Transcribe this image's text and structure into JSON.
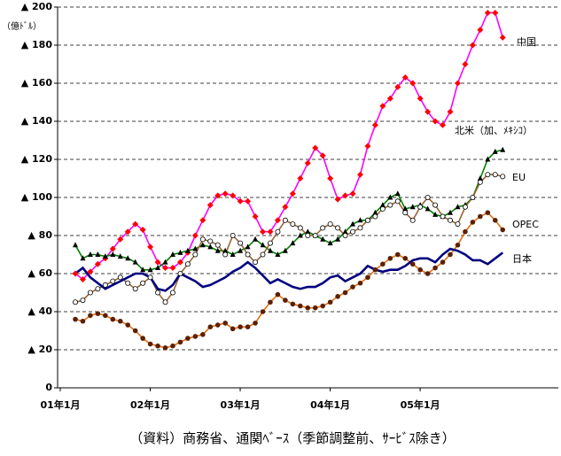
{
  "chart_data": {
    "type": "line",
    "unit_label": "（億ﾄﾞﾙ）",
    "source": "（資料）商務省、通関ﾍﾞｰｽ（季節調整前、ｻｰﾋﾞｽ除き）",
    "categories": [
      "01年1月",
      null,
      null,
      null,
      null,
      null,
      null,
      null,
      null,
      null,
      null,
      null,
      "02年1月",
      null,
      null,
      null,
      null,
      null,
      null,
      null,
      null,
      null,
      null,
      null,
      "03年1月",
      null,
      null,
      null,
      null,
      null,
      null,
      null,
      null,
      null,
      null,
      null,
      "04年1月",
      null,
      null,
      null,
      null,
      null,
      null,
      null,
      null,
      null,
      null,
      null,
      "05年1月",
      null,
      null,
      null,
      null,
      null,
      null,
      null,
      null,
      null
    ],
    "ylim": [
      0,
      200
    ],
    "yticks": [
      0,
      {
        "value": 20,
        "label": "▲ 20"
      },
      {
        "value": 40,
        "label": "▲ 40"
      },
      {
        "value": 60,
        "label": "▲ 60"
      },
      {
        "value": 80,
        "label": "▲ 80"
      },
      {
        "value": 100,
        "label": "▲ 100"
      },
      {
        "value": 120,
        "label": "▲ 120"
      },
      {
        "value": 140,
        "label": "▲ 140"
      },
      {
        "value": 160,
        "label": "▲ 160"
      },
      {
        "value": 180,
        "label": "▲ 180"
      },
      {
        "value": 200,
        "label": "▲ 200"
      }
    ],
    "grid": true,
    "series": [
      {
        "name": "中国",
        "color": "#ff00ff",
        "marker": "diamond",
        "marker_color": "#ff0000",
        "values": [
          60,
          57,
          61,
          65,
          68,
          73,
          78,
          82,
          86,
          83,
          74,
          66,
          63,
          63,
          66,
          71,
          80,
          88,
          96,
          101,
          102,
          101,
          98,
          98,
          90,
          82,
          82,
          88,
          95,
          102,
          110,
          118,
          126,
          122,
          110,
          99,
          101,
          102,
          112,
          127,
          138,
          148,
          152,
          158,
          163,
          160,
          152,
          145,
          140,
          138,
          145,
          160,
          170,
          180,
          188,
          197,
          197,
          184
        ]
      },
      {
        "name": "北米（加、ﾒｷｼｺ）",
        "color": "#008000",
        "marker": "triangle",
        "marker_color": "#000000",
        "values": [
          75,
          68,
          70,
          70,
          69,
          70,
          69,
          68,
          66,
          62,
          62,
          63,
          66,
          70,
          71,
          72,
          73,
          75,
          74,
          72,
          72,
          70,
          72,
          74,
          78,
          75,
          72,
          70,
          72,
          76,
          80,
          82,
          80,
          78,
          76,
          78,
          82,
          86,
          88,
          88,
          92,
          96,
          100,
          102,
          94,
          95,
          96,
          94,
          91,
          90,
          92,
          95,
          96,
          100,
          110,
          120,
          124,
          125
        ]
      },
      {
        "name": "EU",
        "color": "#996633",
        "marker": "circle-open",
        "marker_color": "#000000",
        "values": [
          45,
          46,
          50,
          52,
          54,
          56,
          58,
          55,
          52,
          55,
          58,
          50,
          45,
          50,
          60,
          65,
          70,
          78,
          77,
          75,
          70,
          80,
          76,
          70,
          66,
          70,
          76,
          82,
          88,
          86,
          84,
          80,
          80,
          84,
          86,
          84,
          80,
          82,
          84,
          88,
          90,
          94,
          96,
          98,
          92,
          88,
          95,
          100,
          96,
          90,
          88,
          86,
          95,
          100,
          108,
          112,
          112,
          111
        ]
      },
      {
        "name": "OPEC",
        "color": "#e07010",
        "marker": "circle",
        "marker_color": "#5c1f00",
        "values": [
          36,
          35,
          38,
          39,
          38,
          36,
          35,
          33,
          30,
          26,
          23,
          22,
          21,
          22,
          24,
          26,
          27,
          28,
          32,
          33,
          34,
          31,
          32,
          32,
          34,
          40,
          45,
          49,
          46,
          44,
          43,
          42,
          42,
          43,
          45,
          48,
          50,
          53,
          55,
          58,
          62,
          65,
          68,
          70,
          68,
          65,
          62,
          60,
          63,
          66,
          70,
          75,
          82,
          87,
          90,
          92,
          88,
          83
        ]
      },
      {
        "name": "日本",
        "color": "#000080",
        "marker": "none",
        "marker_color": "#000080",
        "values": [
          60,
          63,
          58,
          55,
          52,
          54,
          56,
          58,
          60,
          60,
          58,
          52,
          51,
          54,
          60,
          58,
          56,
          53,
          54,
          56,
          58,
          61,
          63,
          66,
          63,
          59,
          55,
          57,
          55,
          53,
          52,
          53,
          53,
          55,
          58,
          59,
          56,
          58,
          60,
          64,
          62,
          61,
          62,
          62,
          64,
          67,
          68,
          68,
          66,
          70,
          73,
          72,
          70,
          67,
          67,
          65,
          68,
          71
        ]
      }
    ]
  }
}
